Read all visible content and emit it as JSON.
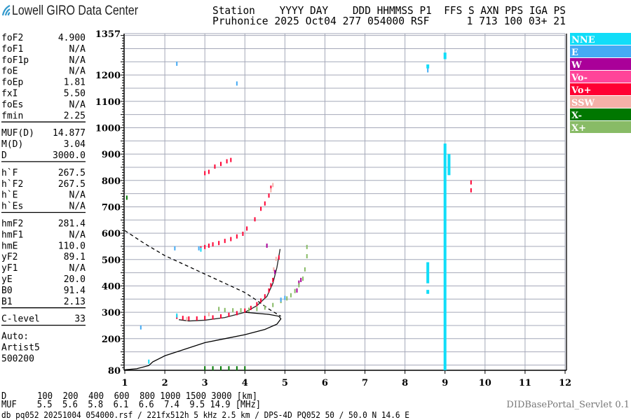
{
  "brand": {
    "name": "Lowell GIRO Data Center",
    "logo_color": "#3399cc"
  },
  "header": {
    "line1": "Station    YYYY DAY    DDD HHMMSS P1  FFS S AXN PPS IGA PS",
    "line2": "Pruhonice 2025 Oct04 277 054000 RSF      1 713 100 03+ 21"
  },
  "params": {
    "groups": [
      [
        [
          "foF2",
          "4.900"
        ],
        [
          "foF1",
          "N/A"
        ],
        [
          "foF1p",
          "N/A"
        ],
        [
          "foE",
          "N/A"
        ],
        [
          "foEp",
          "1.81"
        ],
        [
          "fxI",
          "5.50"
        ],
        [
          "foEs",
          "N/A"
        ],
        [
          "fmin",
          "2.25"
        ]
      ],
      [
        [
          "MUF(D)",
          "14.877"
        ],
        [
          "M(D)",
          "3.04"
        ],
        [
          "D",
          "3000.0"
        ]
      ],
      [
        [
          "h`F",
          "267.5"
        ],
        [
          "h`F2",
          "267.5"
        ],
        [
          "h`E",
          "N/A"
        ],
        [
          "h`Es",
          "N/A"
        ]
      ],
      [
        [
          "hmF2",
          "281.4"
        ],
        [
          "hmF1",
          "N/A"
        ],
        [
          "hmE",
          "110.0"
        ],
        [
          "yF2",
          "89.1"
        ],
        [
          "yF1",
          "N/A"
        ],
        [
          "yE",
          "20.0"
        ],
        [
          "B0",
          "91.4"
        ],
        [
          "B1",
          "2.13"
        ]
      ],
      [
        [
          "C-level",
          "33"
        ]
      ]
    ],
    "auto": [
      "Auto:",
      "Artist5",
      "500200"
    ]
  },
  "footer": {
    "d_line": "D      100  200  400  600  800 1000 1500 3000 [km]",
    "muf_line": "MUF    5.5  5.6  5.8  6.1  6.6  7.4  9.5 14.9 [MHz]",
    "file_line": "db pq052 20251004 054000.rsf / 221fx512h 5 kHz 2.5 km / DPS-4D PQ052 50 / 50.0 N 14.6 E",
    "servlet": "DIDBasePortal_Servlet 0.1"
  },
  "chart_data": {
    "type": "scatter",
    "xlabel": "",
    "ylabel": "",
    "xlim": [
      1,
      12
    ],
    "ylim": [
      80,
      1357
    ],
    "x_ticks": [
      "1",
      "2",
      "3",
      "4",
      "5",
      "6",
      "7",
      "8",
      "9",
      "10",
      "11",
      "12"
    ],
    "y_ticks": [
      "1357",
      "1200",
      "1100",
      "1000",
      "900",
      "800",
      "700",
      "600",
      "500",
      "400",
      "300",
      "200",
      "80"
    ],
    "grid": true,
    "legend_position": "right",
    "legend": [
      {
        "name": "NNE",
        "color": "#11ddf8"
      },
      {
        "name": "E",
        "color": "#44aaf4"
      },
      {
        "name": "W",
        "color": "#aa0099"
      },
      {
        "name": "Vo-",
        "color": "#ff4499"
      },
      {
        "name": "Vo+",
        "color": "#ff0033"
      },
      {
        "name": "SSW",
        "color": "#f4b0a8"
      },
      {
        "name": "X-",
        "color": "#007700"
      },
      {
        "name": "X+",
        "color": "#88bb66"
      }
    ],
    "series": [
      {
        "name": "Vo+",
        "color": "#ff0033",
        "points": [
          [
            2.3,
            280
          ],
          [
            2.45,
            276
          ],
          [
            2.6,
            274
          ],
          [
            2.8,
            274
          ],
          [
            3.0,
            276
          ],
          [
            3.2,
            278
          ],
          [
            3.4,
            282
          ],
          [
            3.6,
            288
          ],
          [
            3.8,
            294
          ],
          [
            4.0,
            304
          ],
          [
            4.15,
            314
          ],
          [
            4.3,
            328
          ],
          [
            4.4,
            342
          ],
          [
            4.5,
            358
          ],
          [
            4.6,
            380
          ],
          [
            4.65,
            400
          ],
          [
            4.7,
            420
          ],
          [
            2.9,
            540
          ],
          [
            3.0,
            545
          ],
          [
            3.1,
            550
          ],
          [
            3.2,
            555
          ],
          [
            3.35,
            560
          ],
          [
            3.5,
            568
          ],
          [
            3.65,
            575
          ],
          [
            3.8,
            585
          ],
          [
            3.95,
            595
          ],
          [
            4.05,
            615
          ],
          [
            4.25,
            650
          ],
          [
            4.4,
            690
          ],
          [
            4.5,
            710
          ],
          [
            4.6,
            740
          ],
          [
            4.65,
            770
          ],
          [
            3.0,
            825
          ],
          [
            3.1,
            830
          ],
          [
            3.25,
            850
          ],
          [
            3.4,
            860
          ],
          [
            3.55,
            870
          ],
          [
            3.65,
            875
          ],
          [
            4.85,
            505
          ],
          [
            9.1,
            870
          ],
          [
            9.65,
            790
          ],
          [
            9.65,
            760
          ]
        ]
      },
      {
        "name": "SSW",
        "color": "#f4b0a8",
        "points": [
          [
            4.72,
            460
          ],
          [
            4.78,
            500
          ],
          [
            4.7,
            780
          ],
          [
            4.65,
            760
          ],
          [
            2.55,
            272
          ],
          [
            3.1,
            290
          ]
        ]
      },
      {
        "name": "W",
        "color": "#aa0099",
        "points": [
          [
            4.75,
            450
          ],
          [
            5.3,
            380
          ],
          [
            5.4,
            420
          ],
          [
            5.35,
            410
          ],
          [
            4.55,
            550
          ],
          [
            9.0,
            620
          ],
          [
            9.0,
            560
          ]
        ]
      },
      {
        "name": "X+",
        "color": "#88bb66",
        "points": [
          [
            3.35,
            310
          ],
          [
            3.5,
            306
          ],
          [
            3.7,
            305
          ],
          [
            3.9,
            305
          ],
          [
            4.1,
            307
          ],
          [
            4.3,
            310
          ],
          [
            4.5,
            315
          ],
          [
            4.7,
            325
          ],
          [
            4.9,
            340
          ],
          [
            5.05,
            350
          ],
          [
            5.15,
            362
          ],
          [
            5.25,
            378
          ],
          [
            5.35,
            400
          ],
          [
            5.45,
            425
          ],
          [
            5.5,
            460
          ],
          [
            5.55,
            510
          ],
          [
            5.55,
            545
          ]
        ]
      },
      {
        "name": "X-",
        "color": "#007700",
        "points": [
          [
            1.05,
            732
          ],
          [
            3.0,
            85
          ],
          [
            3.2,
            85
          ],
          [
            3.4,
            85
          ],
          [
            3.6,
            85
          ],
          [
            3.8,
            85
          ],
          [
            4.0,
            85
          ],
          [
            9.0,
            640
          ]
        ]
      },
      {
        "name": "E",
        "color": "#44aaf4",
        "points": [
          [
            2.25,
            540
          ],
          [
            2.85,
            540
          ],
          [
            5.0,
            352
          ],
          [
            4.9,
            345
          ],
          [
            1.4,
            240
          ],
          [
            2.3,
            1240
          ],
          [
            3.8,
            1165
          ],
          [
            8.57,
            1215
          ]
        ]
      },
      {
        "name": "NNE",
        "color": "#11ddf8",
        "points": [
          [
            2.3,
            285
          ],
          [
            2.9,
            535
          ],
          [
            1.6,
            110
          ]
        ],
        "bars": [
          [
            9.0,
            80,
            940
          ],
          [
            8.57,
            410,
            490
          ],
          [
            8.57,
            370,
            385
          ],
          [
            8.57,
            1225,
            1240
          ],
          [
            9.0,
            1260,
            1285
          ],
          [
            9.1,
            820,
            900
          ]
        ]
      }
    ],
    "model_profile": [
      [
        1.0,
        82
      ],
      [
        1.3,
        86
      ],
      [
        1.6,
        98
      ],
      [
        1.7,
        112
      ],
      [
        2.0,
        135
      ],
      [
        2.5,
        160
      ],
      [
        3.0,
        185
      ],
      [
        3.5,
        200
      ],
      [
        4.0,
        215
      ],
      [
        4.5,
        235
      ],
      [
        4.8,
        255
      ],
      [
        4.9,
        275
      ],
      [
        4.85,
        285
      ],
      [
        4.6,
        292
      ],
      [
        4.0,
        300
      ]
    ],
    "model_o_trace": [
      [
        2.35,
        272
      ],
      [
        2.6,
        267
      ],
      [
        3.0,
        270
      ],
      [
        3.5,
        280
      ],
      [
        4.0,
        300
      ],
      [
        4.3,
        325
      ],
      [
        4.55,
        360
      ],
      [
        4.7,
        410
      ],
      [
        4.8,
        470
      ],
      [
        4.88,
        540
      ]
    ],
    "model_dashed": [
      [
        1.0,
        610
      ],
      [
        1.5,
        560
      ],
      [
        2.0,
        515
      ],
      [
        2.5,
        480
      ],
      [
        3.0,
        445
      ],
      [
        3.5,
        410
      ],
      [
        4.0,
        375
      ],
      [
        4.3,
        345
      ],
      [
        4.6,
        312
      ],
      [
        4.9,
        285
      ]
    ]
  }
}
